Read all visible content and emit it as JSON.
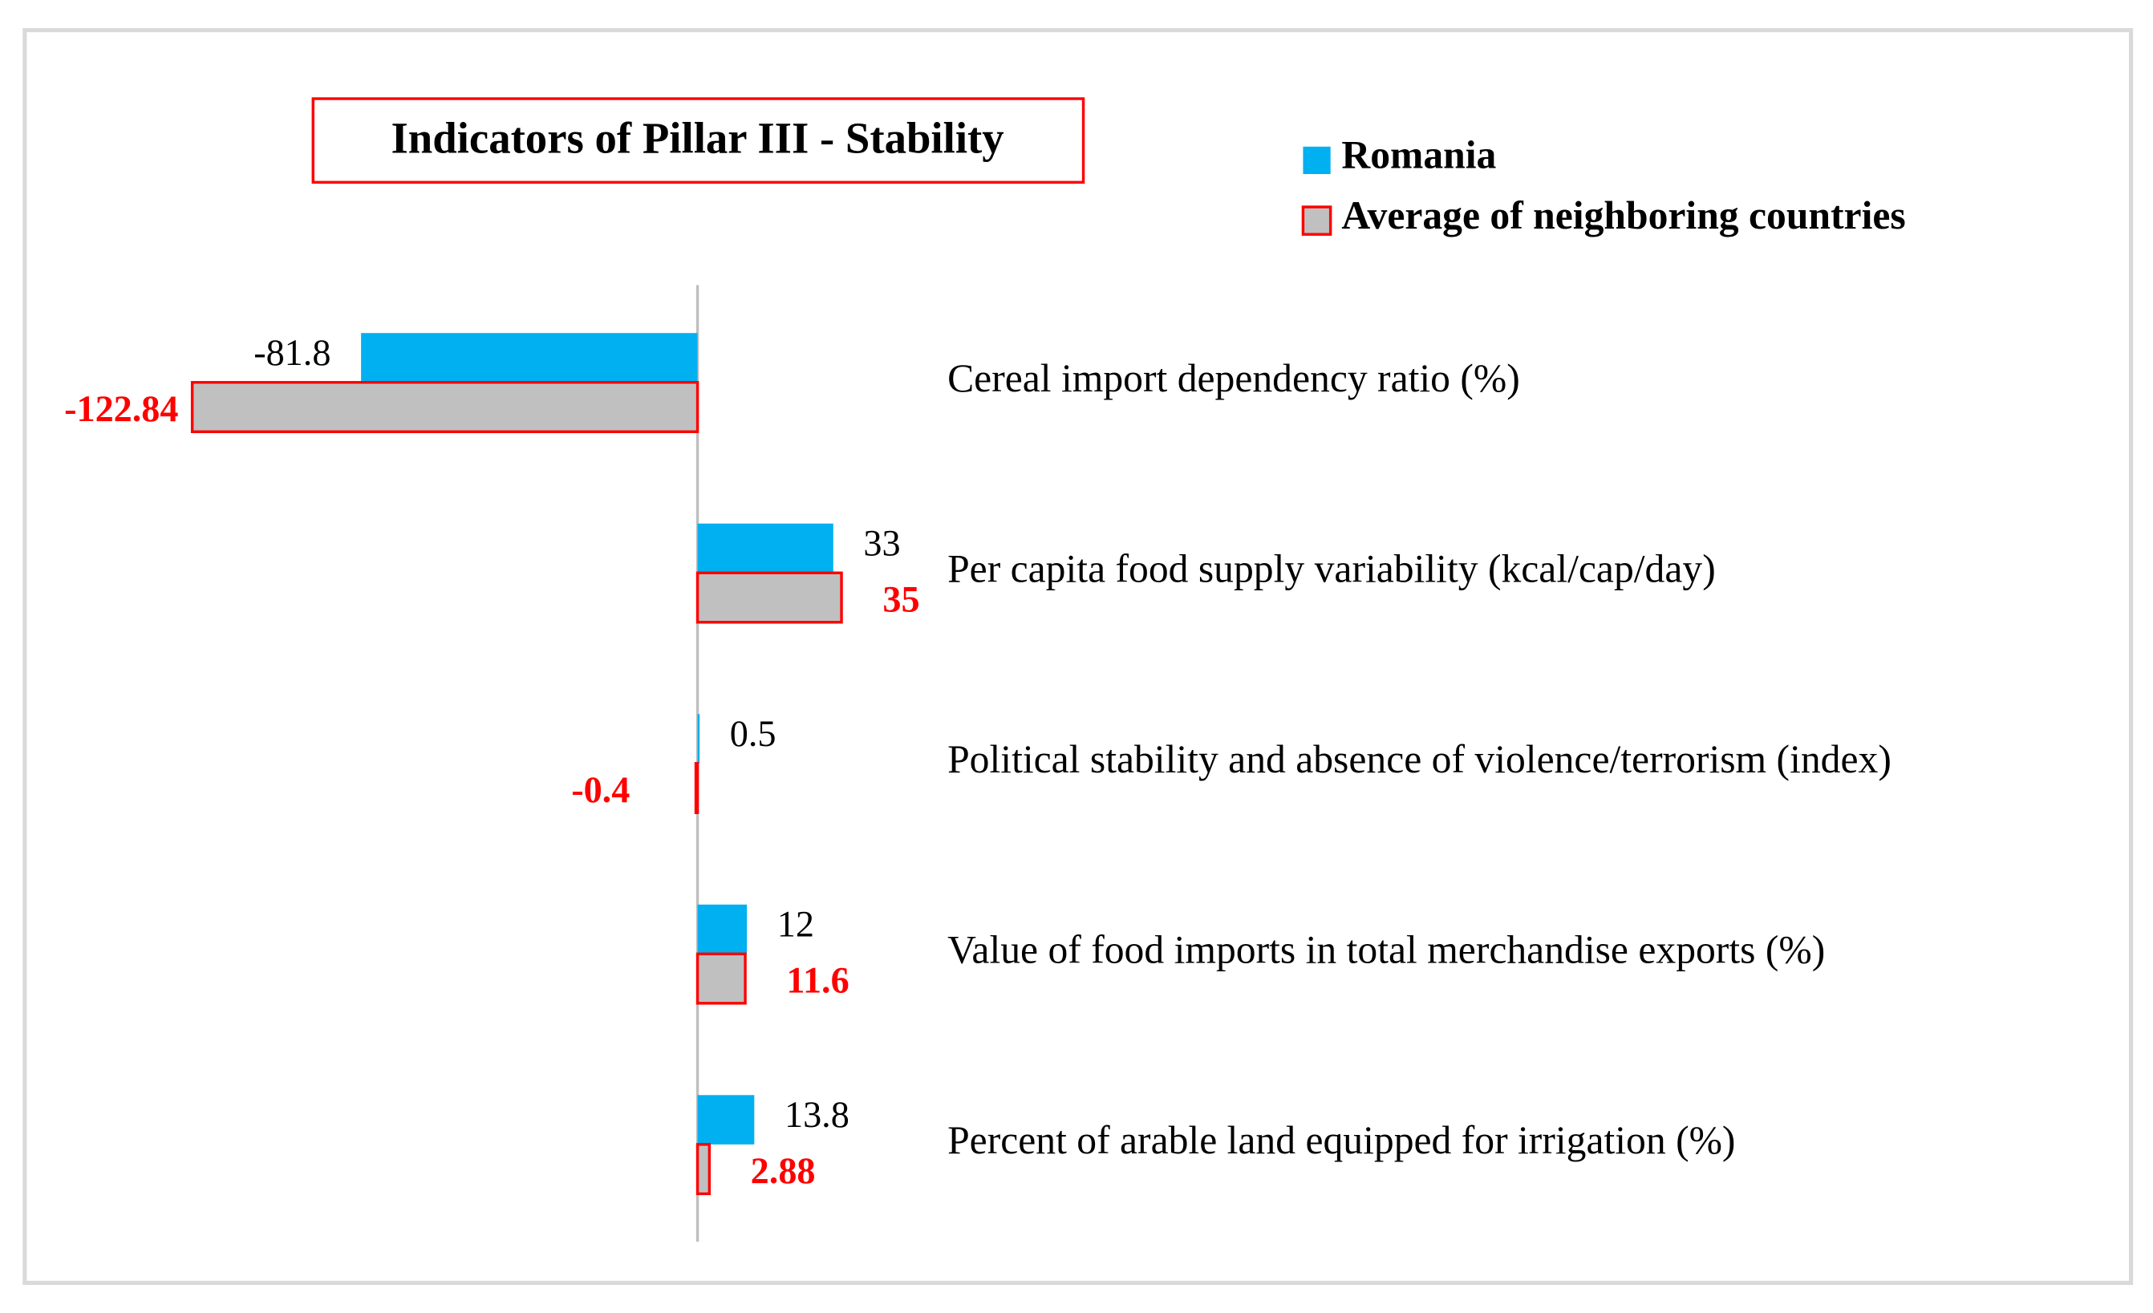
{
  "chart_data": {
    "type": "bar",
    "orientation": "horizontal",
    "title": "Indicators of Pillar III - Stability",
    "categories": [
      "Cereal import dependency ratio (%)",
      "Per capita food supply variability (kcal/cap/day)",
      "Political stability and absence of violence/terrorism (index)",
      "Value of food imports in total merchandise exports (%)",
      "Percent of arable land equipped for irrigation (%)"
    ],
    "series": [
      {
        "name": "Romania",
        "color": "#00b0f0",
        "values": [
          -81.8,
          33,
          0.5,
          12,
          13.8
        ]
      },
      {
        "name": "Average of neighboring countries",
        "color": "#c0c0c0",
        "edge_color": "#ff0000",
        "values": [
          -122.84,
          35,
          -0.4,
          11.6,
          2.88
        ]
      }
    ]
  }
}
